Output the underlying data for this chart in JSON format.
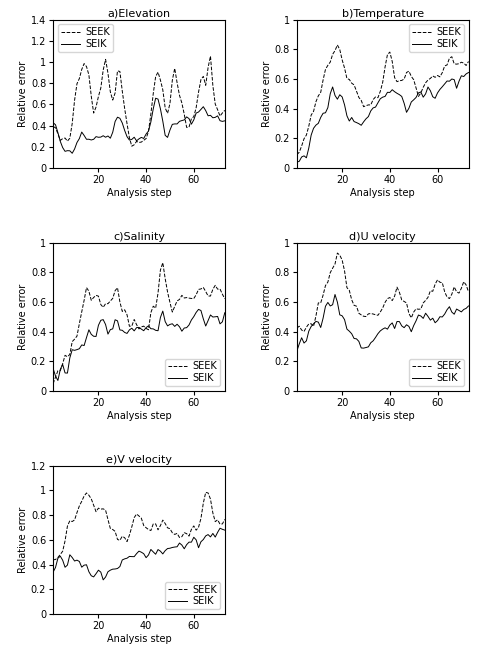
{
  "panels": [
    {
      "title": "a)Elevation",
      "ylim": [
        0,
        1.4
      ],
      "yticks": [
        0,
        0.2,
        0.4,
        0.6,
        0.8,
        1.0,
        1.2,
        1.4
      ],
      "legend_loc": "upper left"
    },
    {
      "title": "b)Temperature",
      "ylim": [
        0,
        1.0
      ],
      "yticks": [
        0,
        0.2,
        0.4,
        0.6,
        0.8,
        1.0
      ],
      "legend_loc": "upper right"
    },
    {
      "title": "c)Salinity",
      "ylim": [
        0,
        1.0
      ],
      "yticks": [
        0,
        0.2,
        0.4,
        0.6,
        0.8,
        1.0
      ],
      "legend_loc": "lower right"
    },
    {
      "title": "d)U velocity",
      "ylim": [
        0,
        1.0
      ],
      "yticks": [
        0,
        0.2,
        0.4,
        0.6,
        0.8,
        1.0
      ],
      "legend_loc": "lower right"
    },
    {
      "title": "e)V velocity",
      "ylim": [
        0,
        1.2
      ],
      "yticks": [
        0,
        0.2,
        0.4,
        0.6,
        0.8,
        1.0,
        1.2
      ],
      "legend_loc": "lower right"
    }
  ],
  "xlabel": "Analysis step",
  "ylabel": "Relative error",
  "xticks": [
    20,
    40,
    60
  ],
  "xlim": [
    1,
    73
  ],
  "legend_labels": [
    "SEEK",
    "SEIK"
  ],
  "seek_linestyle": "--",
  "seik_linestyle": "-",
  "line_color": "black",
  "background_color": "white",
  "font_size": 7,
  "title_font_size": 8,
  "linewidth": 0.7
}
